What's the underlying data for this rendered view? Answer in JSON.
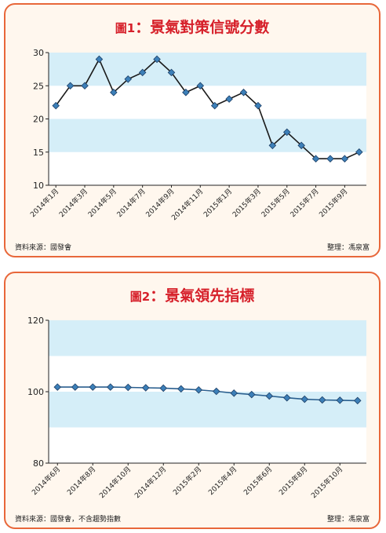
{
  "chart_data": [
    {
      "type": "line",
      "figure_label": "圖1",
      "title": "景氣對策信號分數",
      "categories": [
        "2014年1月",
        "2014年2月",
        "2014年3月",
        "2014年4月",
        "2014年5月",
        "2014年6月",
        "2014年7月",
        "2014年8月",
        "2014年9月",
        "2014年10月",
        "2014年11月",
        "2014年12月",
        "2015年1月",
        "2015年2月",
        "2015年3月",
        "2015年4月",
        "2015年5月",
        "2015年6月",
        "2015年7月",
        "2015年8月",
        "2015年9月",
        "2015年10月"
      ],
      "tick_labels": [
        "2014年1月",
        "2014年3月",
        "2014年5月",
        "2014年7月",
        "2014年9月",
        "2014年11月",
        "2015年1月",
        "2015年3月",
        "2015年5月",
        "2015年7月",
        "2015年9月"
      ],
      "values": [
        22,
        25,
        25,
        29,
        24,
        26,
        27,
        29,
        27,
        24,
        25,
        22,
        23,
        24,
        22,
        16,
        18,
        16,
        14,
        14,
        14,
        15
      ],
      "ylim": [
        10,
        30
      ],
      "yticks": [
        10,
        15,
        20,
        25,
        30
      ],
      "bands": [
        [
          25,
          30
        ],
        [
          15,
          20
        ]
      ],
      "source": "資料來源：國發會",
      "author": "整理：馮泉富",
      "colors": {
        "line": "#1a1a1a",
        "marker": "#3c7fb8",
        "band": "#d5eef8"
      }
    },
    {
      "type": "line",
      "figure_label": "圖2",
      "title": "景氣領先指標",
      "categories": [
        "2014年6月",
        "2014年7月",
        "2014年8月",
        "2014年9月",
        "2014年10月",
        "2014年11月",
        "2014年12月",
        "2015年1月",
        "2015年2月",
        "2015年3月",
        "2015年4月",
        "2015年5月",
        "2015年6月",
        "2015年7月",
        "2015年8月",
        "2015年9月",
        "2015年10月",
        "2015年11月"
      ],
      "tick_labels": [
        "2014年6月",
        "2014年8月",
        "2014年10月",
        "2014年12月",
        "2015年2月",
        "2015年4月",
        "2015年6月",
        "2015年8月",
        "2015年10月"
      ],
      "values": [
        101.3,
        101.3,
        101.3,
        101.3,
        101.2,
        101.1,
        101.0,
        100.8,
        100.5,
        100.1,
        99.6,
        99.2,
        98.8,
        98.3,
        97.9,
        97.7,
        97.6,
        97.5
      ],
      "ylim": [
        80,
        120
      ],
      "yticks": [
        80,
        100,
        120
      ],
      "bands": [
        [
          110,
          120
        ],
        [
          90,
          100
        ]
      ],
      "source": "資料來源：國發會，不含趨勢指數",
      "author": "整理：馮泉富",
      "colors": {
        "line": "#2a5f8f",
        "marker": "#3c7fb8",
        "band": "#d5eef8"
      }
    }
  ]
}
